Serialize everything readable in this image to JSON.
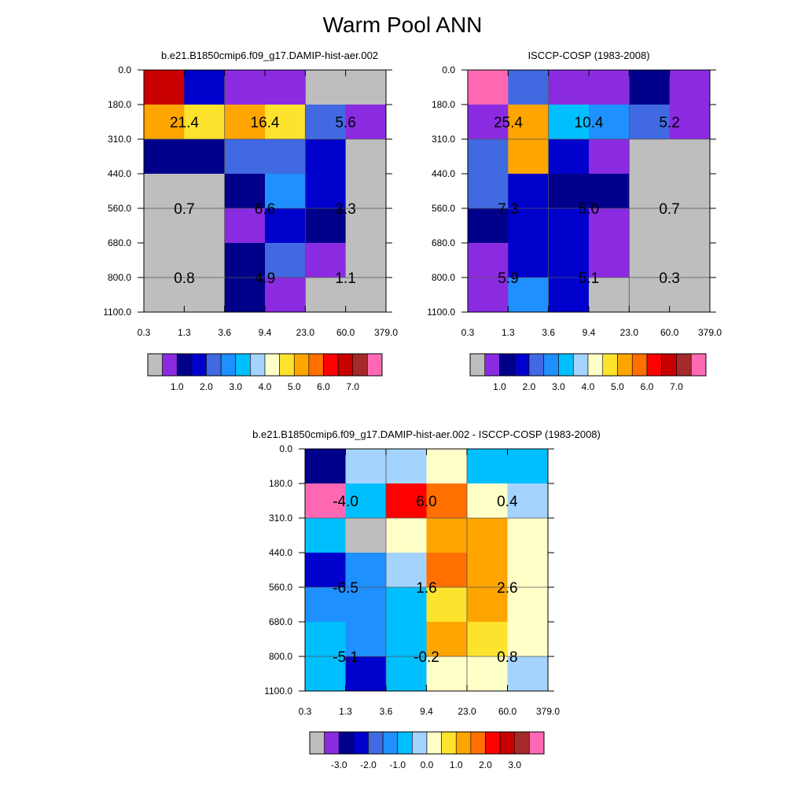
{
  "title": "Warm Pool ANN",
  "palette": {
    "main": [
      "#bebebe",
      "#8a2be2",
      "#00008b",
      "#0000cd",
      "#4169e1",
      "#1e90ff",
      "#00bfff",
      "#a4d3ff",
      "#ffffc8",
      "#fde32e",
      "#ffa500",
      "#ff7000",
      "#ff0000",
      "#c80000",
      "#a52a2a",
      "#ff69b4"
    ],
    "diff": [
      "#bebebe",
      "#8a2be2",
      "#00008b",
      "#0000cd",
      "#4169e1",
      "#1e90ff",
      "#00bfff",
      "#a4d3ff",
      "#ffffc8",
      "#fde32e",
      "#ffa500",
      "#ff7000",
      "#ff0000",
      "#c80000",
      "#a52a2a",
      "#ff69b4"
    ]
  },
  "chart_data": [
    {
      "type": "heatmap",
      "title": "b.e21.B1850cmip6.f09_g17.DAMIP-hist-aer.002",
      "x_ticks": [
        "0.3",
        "1.3",
        "3.6",
        "9.4",
        "23.0",
        "60.0",
        "379.0"
      ],
      "y_ticks": [
        "0.0",
        "180.0",
        "310.0",
        "440.0",
        "560.0",
        "680.0",
        "800.0",
        "1100.0"
      ],
      "cells": [
        [
          13,
          3,
          1,
          1,
          0,
          0
        ],
        [
          10,
          9,
          10,
          9,
          4,
          1
        ],
        [
          2,
          2,
          4,
          4,
          3,
          0
        ],
        [
          0,
          0,
          2,
          5,
          3,
          0
        ],
        [
          0,
          0,
          1,
          3,
          2,
          0
        ],
        [
          0,
          0,
          2,
          4,
          1,
          0
        ],
        [
          0,
          0,
          2,
          1,
          0,
          0
        ]
      ],
      "labels": [
        "21.4",
        "16.4",
        "5.6",
        "0.7",
        "6.6",
        "3.3",
        "0.8",
        "4.9",
        "1.1"
      ],
      "colorbar_ticks": [
        "1.0",
        "2.0",
        "3.0",
        "4.0",
        "5.0",
        "6.0",
        "7.0"
      ]
    },
    {
      "type": "heatmap",
      "title": "ISCCP-COSP (1983-2008)",
      "x_ticks": [
        "0.3",
        "1.3",
        "3.6",
        "9.4",
        "23.0",
        "60.0",
        "379.0"
      ],
      "y_ticks": [
        "0.0",
        "180.0",
        "310.0",
        "440.0",
        "560.0",
        "680.0",
        "800.0",
        "1100.0"
      ],
      "cells": [
        [
          15,
          4,
          1,
          1,
          2,
          1
        ],
        [
          1,
          10,
          6,
          5,
          4,
          1
        ],
        [
          4,
          10,
          3,
          1,
          0,
          0
        ],
        [
          4,
          3,
          2,
          2,
          0,
          0
        ],
        [
          2,
          3,
          3,
          1,
          0,
          0
        ],
        [
          1,
          3,
          3,
          1,
          0,
          0
        ],
        [
          1,
          5,
          3,
          0,
          0,
          0
        ]
      ],
      "labels": [
        "25.4",
        "10.4",
        "5.2",
        "7.3",
        "5.0",
        "0.7",
        "5.9",
        "5.1",
        "0.3"
      ],
      "colorbar_ticks": [
        "1.0",
        "2.0",
        "3.0",
        "4.0",
        "5.0",
        "6.0",
        "7.0"
      ]
    },
    {
      "type": "heatmap",
      "title": "b.e21.B1850cmip6.f09_g17.DAMIP-hist-aer.002 - ISCCP-COSP (1983-2008)",
      "x_ticks": [
        "0.3",
        "1.3",
        "3.6",
        "9.4",
        "23.0",
        "60.0",
        "379.0"
      ],
      "y_ticks": [
        "0.0",
        "180.0",
        "310.0",
        "440.0",
        "560.0",
        "680.0",
        "800.0",
        "1100.0"
      ],
      "cells": [
        [
          2,
          7,
          7,
          8,
          6,
          6
        ],
        [
          15,
          6,
          12,
          11,
          8,
          7
        ],
        [
          6,
          0,
          8,
          10,
          10,
          8
        ],
        [
          3,
          5,
          7,
          11,
          10,
          8
        ],
        [
          5,
          5,
          6,
          9,
          10,
          8
        ],
        [
          6,
          5,
          6,
          10,
          9,
          8
        ],
        [
          6,
          3,
          6,
          8,
          8,
          7
        ]
      ],
      "labels": [
        "-4.0",
        "6.0",
        "0.4",
        "-6.5",
        "1.6",
        "2.6",
        "-5.1",
        "-0.2",
        "0.8"
      ],
      "colorbar_ticks": [
        "-3.0",
        "-2.0",
        "-1.0",
        "0.0",
        "1.0",
        "2.0",
        "3.0"
      ]
    }
  ]
}
